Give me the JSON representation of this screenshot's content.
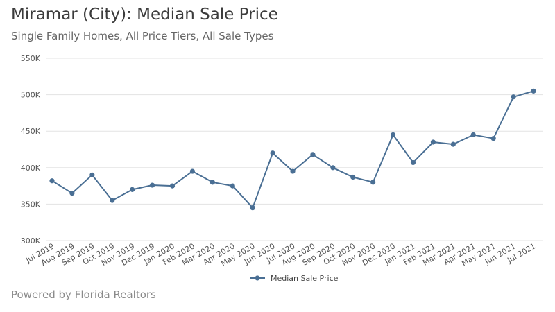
{
  "header": {
    "title": "Miramar (City): Median Sale Price",
    "subtitle": "Single Family Homes, All Price Tiers, All Sale Types"
  },
  "footer": {
    "text": "Powered by Florida Realtors"
  },
  "colors": {
    "series": "#4a6f94",
    "grid": "#e3e3e3",
    "axis_text": "#555555"
  },
  "chart_data": {
    "type": "line",
    "title": "Miramar (City): Median Sale Price",
    "subtitle": "Single Family Homes, All Price Tiers, All Sale Types",
    "xlabel": "",
    "ylabel": "",
    "ylim": [
      300000,
      550000
    ],
    "yticks": [
      300000,
      350000,
      400000,
      450000,
      500000,
      550000
    ],
    "ytick_labels": [
      "300K",
      "350K",
      "400K",
      "450K",
      "500K",
      "550K"
    ],
    "grid": true,
    "legend_position": "bottom-center",
    "categories": [
      "Jul 2019",
      "Aug 2019",
      "Sep 2019",
      "Oct 2019",
      "Nov 2019",
      "Dec 2019",
      "Jan 2020",
      "Feb 2020",
      "Mar 2020",
      "Apr 2020",
      "May 2020",
      "Jun 2020",
      "Jul 2020",
      "Aug 2020",
      "Sep 2020",
      "Oct 2020",
      "Nov 2020",
      "Dec 2020",
      "Jan 2021",
      "Feb 2021",
      "Mar 2021",
      "Apr 2021",
      "May 2021",
      "Jun 2021",
      "Jul 2021"
    ],
    "series": [
      {
        "name": "Median Sale Price",
        "values": [
          382000,
          365000,
          390000,
          355000,
          370000,
          376000,
          375000,
          395000,
          380000,
          375000,
          345000,
          420000,
          395000,
          418000,
          400000,
          387000,
          380000,
          445000,
          407000,
          435000,
          432000,
          445000,
          440000,
          497000,
          505000
        ]
      }
    ]
  }
}
